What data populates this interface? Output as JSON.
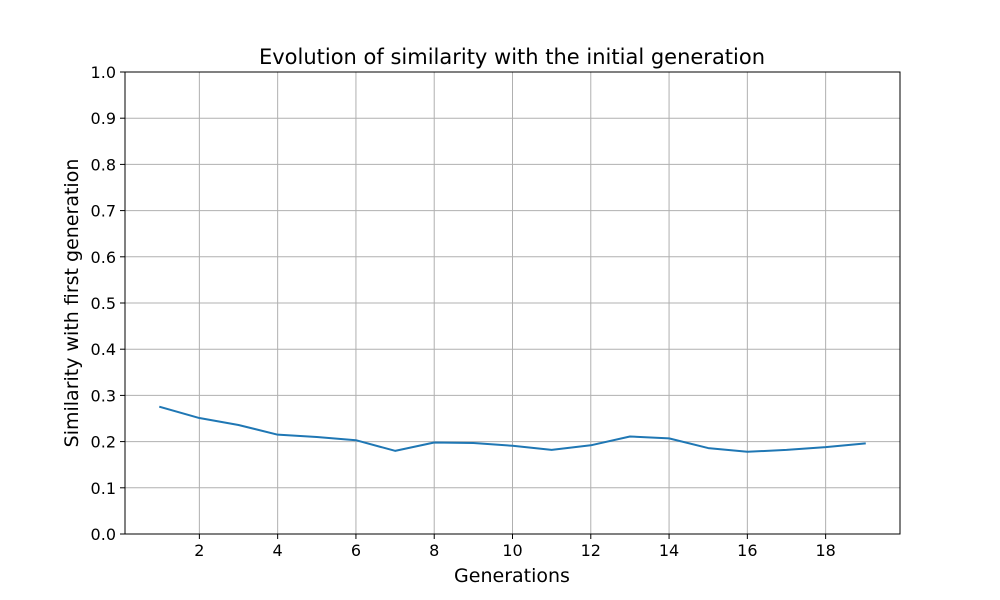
{
  "chart_data": {
    "type": "line",
    "title": "Evolution of similarity with the initial generation",
    "xlabel": "Generations",
    "ylabel": "Similarity with first generation",
    "xlim": [
      0.1,
      19.9
    ],
    "ylim": [
      0.0,
      1.0
    ],
    "xticks": [
      2,
      4,
      6,
      8,
      10,
      12,
      14,
      16,
      18
    ],
    "yticks": [
      0.0,
      0.1,
      0.2,
      0.3,
      0.4,
      0.5,
      0.6,
      0.7,
      0.8,
      0.9,
      1.0
    ],
    "ytick_labels": [
      "0.0",
      "0.1",
      "0.2",
      "0.3",
      "0.4",
      "0.5",
      "0.6",
      "0.7",
      "0.8",
      "0.9",
      "1.0"
    ],
    "grid": true,
    "line_color": "#1f77b4",
    "x": [
      1,
      2,
      3,
      4,
      5,
      6,
      7,
      8,
      9,
      10,
      11,
      12,
      13,
      14,
      15,
      16,
      17,
      18,
      19
    ],
    "y": [
      0.275,
      0.251,
      0.236,
      0.215,
      0.21,
      0.203,
      0.18,
      0.198,
      0.197,
      0.191,
      0.182,
      0.192,
      0.211,
      0.207,
      0.186,
      0.178,
      0.182,
      0.188,
      0.196
    ]
  }
}
